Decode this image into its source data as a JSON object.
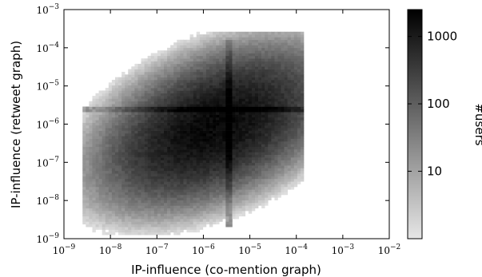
{
  "chart_data": {
    "type": "heatmap",
    "title": "",
    "xlabel": "IP-influence (co-mention graph)",
    "ylabel": "IP-influence (retweet graph)",
    "x_scale": "log",
    "y_scale": "log",
    "xlim": [
      1e-09,
      0.01
    ],
    "ylim": [
      1e-09,
      0.001
    ],
    "x_ticks": [
      {
        "base": "10",
        "exp": "−9"
      },
      {
        "base": "10",
        "exp": "−8"
      },
      {
        "base": "10",
        "exp": "−7"
      },
      {
        "base": "10",
        "exp": "−6"
      },
      {
        "base": "10",
        "exp": "−5"
      },
      {
        "base": "10",
        "exp": "−4"
      },
      {
        "base": "10",
        "exp": "−3"
      },
      {
        "base": "10",
        "exp": "−2"
      }
    ],
    "y_ticks": [
      {
        "base": "10",
        "exp": "−9"
      },
      {
        "base": "10",
        "exp": "−8"
      },
      {
        "base": "10",
        "exp": "−7"
      },
      {
        "base": "10",
        "exp": "−6"
      },
      {
        "base": "10",
        "exp": "−5"
      },
      {
        "base": "10",
        "exp": "−4"
      },
      {
        "base": "10",
        "exp": "−3"
      }
    ],
    "colorbar": {
      "label": "#users",
      "scale": "log",
      "range": [
        1,
        2500
      ],
      "ticks": [
        {
          "value": 10,
          "label": "10"
        },
        {
          "value": 100,
          "label": "100"
        },
        {
          "value": 1000,
          "label": "1000"
        }
      ],
      "colormap": [
        "#e6e6e6",
        "#000000"
      ]
    },
    "density": {
      "center_log10": [
        -5.8,
        -6.1
      ],
      "spread_log10": [
        0.9,
        0.75
      ],
      "correlation": 0.45,
      "peak_count": 2000,
      "extent_x_log10": [
        -8.6,
        -3.9
      ],
      "extent_y_log10": [
        -8.9,
        -3.6
      ],
      "ridge_x_log10": -5.5,
      "ridge_y_log10": -5.65,
      "ridge_x_range_log10": [
        -8.8,
        -3.0
      ],
      "ridge_y_range_log10": [
        -8.7,
        -3.8
      ]
    }
  }
}
